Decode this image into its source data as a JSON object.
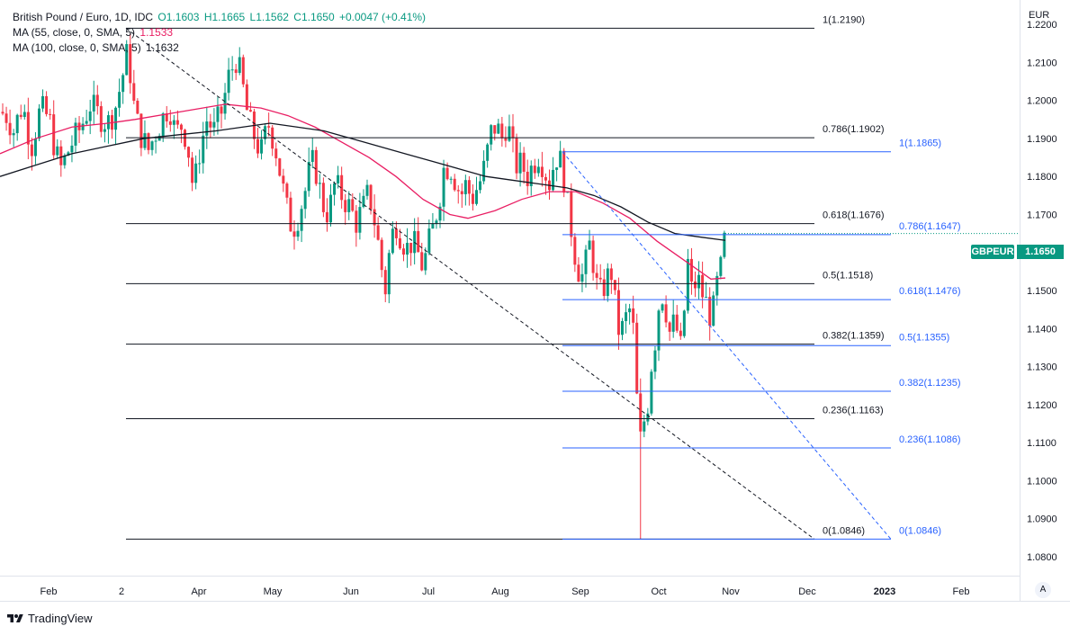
{
  "header": {
    "symbol_title": "British Pound / Euro, 1D, IDC",
    "open_label": "O",
    "open": "1.1603",
    "high_label": "H",
    "high": "1.1665",
    "low_label": "L",
    "low": "1.1562",
    "close_label": "C",
    "close": "1.1650",
    "change": "+0.0047 (+0.41%)",
    "ma55_label": "MA (55, close, 0, SMA, 5)",
    "ma55_value": "1.1533",
    "ma100_label": "MA (100, close, 0, SMA, 5)",
    "ma100_value": "1.1632"
  },
  "axis_unit": "EUR",
  "symbol_tag": "GBPEUR",
  "last_price": "1.1650",
  "auto_button": "A",
  "brand": "TradingView",
  "colors": {
    "up": "#089981",
    "down": "#f23645",
    "ma55": "#e91e63",
    "ma100": "#131722",
    "fib_black": "#131722",
    "fib_blue": "#2962ff",
    "grid": "#f0f3fa"
  },
  "chart_data": {
    "type": "candlestick",
    "y_axis": {
      "min": 1.075,
      "max": 1.225,
      "ticks": [
        "1.0800",
        "1.0900",
        "1.1000",
        "1.1100",
        "1.1200",
        "1.1300",
        "1.1400",
        "1.1500",
        "1.1600",
        "1.1700",
        "1.1800",
        "1.1900",
        "1.2000",
        "1.2100",
        "1.2200"
      ]
    },
    "x_ticks": [
      "Feb",
      "2",
      "Apr",
      "May",
      "Jun",
      "Jul",
      "Aug",
      "Sep",
      "Oct",
      "Nov",
      "Dec",
      "2023",
      "Feb"
    ],
    "close_path": [
      [
        0,
        1.197
      ],
      [
        8,
        1.196
      ],
      [
        15,
        1.192
      ],
      [
        25,
        1.199
      ],
      [
        35,
        1.188
      ],
      [
        45,
        1.198
      ],
      [
        55,
        1.195
      ],
      [
        62,
        1.186
      ],
      [
        68,
        1.182
      ],
      [
        78,
        1.188
      ],
      [
        90,
        1.193
      ],
      [
        100,
        1.199
      ],
      [
        110,
        1.196
      ],
      [
        120,
        1.194
      ],
      [
        128,
        1.198
      ],
      [
        135,
        1.205
      ],
      [
        141,
        1.212
      ],
      [
        145,
        1.207
      ],
      [
        150,
        1.196
      ],
      [
        158,
        1.19
      ],
      [
        165,
        1.187
      ],
      [
        172,
        1.191
      ],
      [
        180,
        1.195
      ],
      [
        188,
        1.199
      ],
      [
        195,
        1.191
      ],
      [
        203,
        1.194
      ],
      [
        210,
        1.186
      ],
      [
        215,
        1.176
      ],
      [
        222,
        1.187
      ],
      [
        230,
        1.195
      ],
      [
        238,
        1.192
      ],
      [
        246,
        1.197
      ],
      [
        254,
        1.206
      ],
      [
        262,
        1.211
      ],
      [
        268,
        1.206
      ],
      [
        276,
        1.195
      ],
      [
        282,
        1.191
      ],
      [
        290,
        1.186
      ],
      [
        298,
        1.194
      ],
      [
        305,
        1.189
      ],
      [
        312,
        1.18
      ],
      [
        318,
        1.172
      ],
      [
        325,
        1.166
      ],
      [
        332,
        1.17
      ],
      [
        340,
        1.177
      ],
      [
        346,
        1.184
      ],
      [
        352,
        1.181
      ],
      [
        358,
        1.173
      ],
      [
        365,
        1.17
      ],
      [
        372,
        1.178
      ],
      [
        380,
        1.175
      ],
      [
        388,
        1.172
      ],
      [
        396,
        1.168
      ],
      [
        404,
        1.172
      ],
      [
        410,
        1.176
      ],
      [
        418,
        1.166
      ],
      [
        424,
        1.156
      ],
      [
        428,
        1.15
      ],
      [
        434,
        1.163
      ],
      [
        440,
        1.168
      ],
      [
        446,
        1.164
      ],
      [
        452,
        1.161
      ],
      [
        458,
        1.163
      ],
      [
        464,
        1.16
      ],
      [
        470,
        1.156
      ],
      [
        476,
        1.162
      ],
      [
        482,
        1.167
      ],
      [
        488,
        1.174
      ],
      [
        493,
        1.182
      ],
      [
        500,
        1.183
      ],
      [
        506,
        1.179
      ],
      [
        512,
        1.175
      ],
      [
        518,
        1.178
      ],
      [
        524,
        1.174
      ],
      [
        530,
        1.177
      ],
      [
        536,
        1.18
      ],
      [
        542,
        1.187
      ],
      [
        547,
        1.193
      ],
      [
        552,
        1.193
      ],
      [
        558,
        1.19
      ],
      [
        564,
        1.195
      ],
      [
        568,
        1.188
      ],
      [
        574,
        1.183
      ],
      [
        580,
        1.183
      ],
      [
        586,
        1.18
      ],
      [
        592,
        1.183
      ],
      [
        598,
        1.186
      ],
      [
        604,
        1.183
      ],
      [
        610,
        1.178
      ],
      [
        616,
        1.184
      ],
      [
        620,
        1.186
      ],
      [
        626,
        1.181
      ],
      [
        630,
        1.173
      ],
      [
        635,
        1.166
      ],
      [
        640,
        1.158
      ],
      [
        646,
        1.153
      ],
      [
        652,
        1.158
      ],
      [
        656,
        1.163
      ],
      [
        660,
        1.156
      ],
      [
        664,
        1.15
      ],
      [
        668,
        1.149
      ],
      [
        674,
        1.153
      ],
      [
        680,
        1.155
      ],
      [
        684,
        1.145
      ],
      [
        688,
        1.139
      ],
      [
        692,
        1.14
      ],
      [
        696,
        1.143
      ],
      [
        700,
        1.145
      ],
      [
        704,
        1.139
      ],
      [
        708,
        1.12
      ],
      [
        712,
        1.11
      ],
      [
        715,
        1.115
      ],
      [
        718,
        1.118
      ],
      [
        721,
        1.122
      ],
      [
        724,
        1.131
      ],
      [
        727,
        1.135
      ],
      [
        730,
        1.141
      ],
      [
        734,
        1.151
      ],
      [
        737,
        1.148
      ],
      [
        740,
        1.145
      ],
      [
        744,
        1.139
      ],
      [
        748,
        1.141
      ],
      [
        752,
        1.14
      ],
      [
        755,
        1.133
      ],
      [
        758,
        1.137
      ],
      [
        761,
        1.147
      ],
      [
        764,
        1.158
      ],
      [
        767,
        1.152
      ],
      [
        770,
        1.148
      ],
      [
        774,
        1.154
      ],
      [
        778,
        1.151
      ],
      [
        782,
        1.148
      ],
      [
        786,
        1.146
      ],
      [
        790,
        1.143
      ],
      [
        793,
        1.145
      ],
      [
        796,
        1.151
      ],
      [
        799,
        1.153
      ],
      [
        802,
        1.157
      ],
      [
        806,
        1.165
      ]
    ],
    "ma55": [
      [
        0,
        1.186
      ],
      [
        40,
        1.19
      ],
      [
        80,
        1.193
      ],
      [
        120,
        1.194
      ],
      [
        150,
        1.195
      ],
      [
        200,
        1.197
      ],
      [
        250,
        1.199
      ],
      [
        290,
        1.198
      ],
      [
        320,
        1.196
      ],
      [
        350,
        1.193
      ],
      [
        380,
        1.189
      ],
      [
        410,
        1.185
      ],
      [
        440,
        1.18
      ],
      [
        470,
        1.174
      ],
      [
        500,
        1.17
      ],
      [
        520,
        1.169
      ],
      [
        550,
        1.171
      ],
      [
        580,
        1.174
      ],
      [
        610,
        1.176
      ],
      [
        640,
        1.176
      ],
      [
        670,
        1.173
      ],
      [
        700,
        1.169
      ],
      [
        730,
        1.163
      ],
      [
        760,
        1.158
      ],
      [
        790,
        1.153
      ],
      [
        806,
        1.1533
      ]
    ],
    "ma100": [
      [
        0,
        1.18
      ],
      [
        40,
        1.183
      ],
      [
        80,
        1.186
      ],
      [
        120,
        1.188
      ],
      [
        160,
        1.19
      ],
      [
        200,
        1.191
      ],
      [
        240,
        1.192
      ],
      [
        270,
        1.193
      ],
      [
        300,
        1.194
      ],
      [
        330,
        1.193
      ],
      [
        360,
        1.192
      ],
      [
        390,
        1.19
      ],
      [
        420,
        1.188
      ],
      [
        450,
        1.186
      ],
      [
        480,
        1.184
      ],
      [
        510,
        1.182
      ],
      [
        540,
        1.18
      ],
      [
        570,
        1.179
      ],
      [
        600,
        1.178
      ],
      [
        630,
        1.177
      ],
      [
        660,
        1.175
      ],
      [
        690,
        1.172
      ],
      [
        720,
        1.168
      ],
      [
        750,
        1.165
      ],
      [
        780,
        1.164
      ],
      [
        806,
        1.1632
      ]
    ],
    "fib_black": {
      "x_range": [
        140,
        905
      ],
      "levels": [
        {
          "label": "1(1.2190)",
          "value": 1.219
        },
        {
          "label": "0.786(1.1902)",
          "value": 1.1902
        },
        {
          "label": "0.618(1.1676)",
          "value": 1.1676
        },
        {
          "label": "0.5(1.1518)",
          "value": 1.1518
        },
        {
          "label": "0.382(1.1359)",
          "value": 1.1359
        },
        {
          "label": "0.236(1.1163)",
          "value": 1.1163
        },
        {
          "label": "0(1.0846)",
          "value": 1.0846
        }
      ],
      "trend_from": [
        140,
        1.219
      ],
      "trend_to": [
        905,
        1.0846
      ]
    },
    "fib_blue": {
      "x_range": [
        625,
        990
      ],
      "levels": [
        {
          "label": "1(1.1865)",
          "value": 1.1865
        },
        {
          "label": "0.786(1.1647)",
          "value": 1.1647
        },
        {
          "label": "0.618(1.1476)",
          "value": 1.1476
        },
        {
          "label": "0.5(1.1355)",
          "value": 1.1355
        },
        {
          "label": "0.382(1.1235)",
          "value": 1.1235
        },
        {
          "label": "0.236(1.1086)",
          "value": 1.1086
        },
        {
          "label": "0(1.0846)",
          "value": 1.0846
        }
      ],
      "trend_from": [
        625,
        1.1865
      ],
      "trend_to": [
        990,
        1.0846
      ]
    }
  }
}
